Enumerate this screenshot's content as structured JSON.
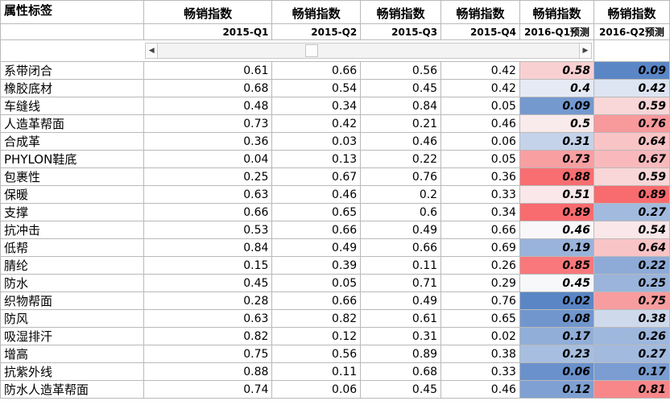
{
  "header": {
    "attr_label": "属性标签",
    "columns": [
      "畅销指数",
      "畅销指数",
      "畅销指数",
      "畅销指数",
      "畅销指数",
      "畅销指数"
    ],
    "subcolumns": [
      "2015-Q1",
      "2015-Q2",
      "2015-Q3",
      "2015-Q4",
      "2016-Q1预测",
      "2016-Q2预测"
    ]
  },
  "scrollbar": {
    "left_icon": "◀",
    "right_icon": "▶"
  },
  "rows": [
    {
      "label": "系带闭合",
      "values": [
        "0.61",
        "0.66",
        "0.56",
        "0.42",
        "0.58",
        "0.09"
      ]
    },
    {
      "label": "橡胶底材",
      "values": [
        "0.68",
        "0.54",
        "0.45",
        "0.42",
        "0.4",
        "0.42"
      ]
    },
    {
      "label": "车缝线",
      "values": [
        "0.48",
        "0.34",
        "0.84",
        "0.05",
        "0.09",
        "0.59"
      ]
    },
    {
      "label": "人造革帮面",
      "values": [
        "0.73",
        "0.42",
        "0.21",
        "0.46",
        "0.5",
        "0.76"
      ]
    },
    {
      "label": "合成革",
      "values": [
        "0.36",
        "0.03",
        "0.46",
        "0.06",
        "0.31",
        "0.64"
      ]
    },
    {
      "label": "PHYLON鞋底",
      "values": [
        "0.04",
        "0.13",
        "0.22",
        "0.05",
        "0.73",
        "0.67"
      ]
    },
    {
      "label": "包裹性",
      "values": [
        "0.25",
        "0.67",
        "0.76",
        "0.36",
        "0.88",
        "0.59"
      ]
    },
    {
      "label": "保暖",
      "values": [
        "0.63",
        "0.46",
        "0.2",
        "0.33",
        "0.51",
        "0.89"
      ]
    },
    {
      "label": "支撑",
      "values": [
        "0.66",
        "0.65",
        "0.6",
        "0.34",
        "0.89",
        "0.27"
      ]
    },
    {
      "label": "抗冲击",
      "values": [
        "0.53",
        "0.66",
        "0.49",
        "0.66",
        "0.46",
        "0.54"
      ]
    },
    {
      "label": "低帮",
      "values": [
        "0.84",
        "0.49",
        "0.66",
        "0.69",
        "0.19",
        "0.64"
      ]
    },
    {
      "label": "腈纶",
      "values": [
        "0.15",
        "0.39",
        "0.11",
        "0.26",
        "0.85",
        "0.22"
      ]
    },
    {
      "label": "防水",
      "values": [
        "0.45",
        "0.05",
        "0.71",
        "0.29",
        "0.45",
        "0.25"
      ]
    },
    {
      "label": "织物帮面",
      "values": [
        "0.28",
        "0.66",
        "0.49",
        "0.76",
        "0.02",
        "0.75"
      ]
    },
    {
      "label": "防风",
      "values": [
        "0.63",
        "0.82",
        "0.61",
        "0.65",
        "0.08",
        "0.38"
      ]
    },
    {
      "label": "吸湿排汗",
      "values": [
        "0.82",
        "0.12",
        "0.31",
        "0.02",
        "0.17",
        "0.26"
      ]
    },
    {
      "label": "增高",
      "values": [
        "0.75",
        "0.56",
        "0.89",
        "0.38",
        "0.23",
        "0.27"
      ]
    },
    {
      "label": "抗紫外线",
      "values": [
        "0.88",
        "0.11",
        "0.68",
        "0.33",
        "0.06",
        "0.17"
      ]
    },
    {
      "label": "防水人造革帮面",
      "values": [
        "0.74",
        "0.06",
        "0.45",
        "0.46",
        "0.12",
        "0.81"
      ]
    }
  ],
  "colors": {
    "high": "#f86b6e",
    "mid": "#f9f9fb",
    "low": "#5b86c6",
    "grid": "#b9b9b9"
  }
}
